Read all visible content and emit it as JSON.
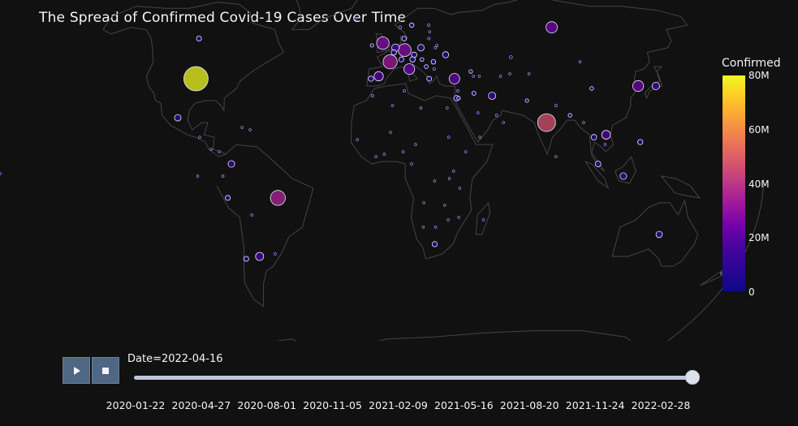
{
  "title": "The Spread of Confirmed Covid-19 Cases Over Time",
  "colorbar": {
    "title": "Confirmed",
    "ticks": [
      "80M",
      "60M",
      "40M",
      "20M",
      "0"
    ],
    "max": 80000000
  },
  "colors": {
    "background": "#111111",
    "land_outline": "#444444",
    "slider_rail": "#bec8d9",
    "button": "#506784"
  },
  "controls": {
    "play_icon": "play-icon",
    "stop_icon": "stop-icon"
  },
  "slider": {
    "current_prefix": "Date=",
    "current_value": "2022-04-16",
    "position_fraction": 1.0,
    "tick_labels": [
      "2020-01-22",
      "2020-04-27",
      "2020-08-01",
      "2020-11-05",
      "2021-02-09",
      "2021-05-16",
      "2021-08-20",
      "2021-11-24",
      "2022-02-28"
    ]
  },
  "chart_data": {
    "type": "scatter",
    "projection": "natural earth",
    "size_and_color_by": "Confirmed",
    "points": [
      {
        "lon": -98,
        "lat": 39,
        "value": 80000000
      },
      {
        "lon": 78,
        "lat": 21,
        "value": 43000000
      },
      {
        "lon": -52,
        "lat": -10,
        "value": 30000000
      },
      {
        "lon": 2,
        "lat": 46,
        "value": 27000000
      },
      {
        "lon": 10,
        "lat": 51,
        "value": 22000000
      },
      {
        "lon": -2,
        "lat": 54,
        "value": 21000000
      },
      {
        "lon": 97,
        "lat": 61,
        "value": 17500000
      },
      {
        "lon": 35,
        "lat": 39,
        "value": 15000000
      },
      {
        "lon": 12,
        "lat": 43,
        "value": 15500000
      },
      {
        "lon": 128,
        "lat": 36,
        "value": 16000000
      },
      {
        "lon": -4,
        "lat": 40,
        "value": 11600000
      },
      {
        "lon": 137,
        "lat": 36,
        "value": 7500000
      },
      {
        "lon": -64,
        "lat": -34,
        "value": 9000000
      },
      {
        "lon": 106,
        "lat": 16,
        "value": 10500000
      },
      {
        "lon": 19,
        "lat": 52,
        "value": 6000000
      },
      {
        "lon": 113,
        "lat": -1,
        "value": 6000000
      },
      {
        "lon": 32,
        "lat": 49,
        "value": 5000000
      },
      {
        "lon": 53,
        "lat": 32,
        "value": 7200000
      },
      {
        "lon": -74,
        "lat": 4,
        "value": 6100000
      },
      {
        "lon": 5,
        "lat": 52,
        "value": 8000000
      },
      {
        "lon": -102,
        "lat": 23,
        "value": 5700000
      },
      {
        "lon": 134,
        "lat": -25,
        "value": 5500000
      },
      {
        "lon": 24,
        "lat": -29,
        "value": 3700000
      },
      {
        "lon": 101,
        "lat": 4,
        "value": 4400000
      },
      {
        "lon": 122,
        "lat": 13,
        "value": 3700000
      },
      {
        "lon": -71,
        "lat": -35,
        "value": 3500000
      },
      {
        "lon": -76,
        "lat": -10,
        "value": 3500000
      },
      {
        "lon": 100,
        "lat": 15,
        "value": 4000000
      },
      {
        "lon": 15,
        "lat": 49,
        "value": 3900000
      },
      {
        "lon": -106,
        "lat": 56,
        "value": 3400000
      },
      {
        "lon": 4,
        "lat": 50,
        "value": 3900000
      },
      {
        "lon": 8,
        "lat": 47,
        "value": 3500000
      },
      {
        "lon": 14,
        "lat": 47,
        "value": 4000000
      },
      {
        "lon": -8,
        "lat": 39,
        "value": 3700000
      },
      {
        "lon": 22,
        "lat": 39,
        "value": 3200000
      },
      {
        "lon": 35,
        "lat": 31,
        "value": 4000000
      },
      {
        "lon": 104,
        "lat": 35,
        "value": 1800000
      },
      {
        "lon": 70,
        "lat": 30,
        "value": 1500000
      },
      {
        "lon": 90,
        "lat": 24,
        "value": 1900000
      },
      {
        "lon": 44,
        "lat": 33,
        "value": 2300000
      },
      {
        "lon": 25,
        "lat": 46,
        "value": 2800000
      },
      {
        "lon": 10,
        "lat": 56,
        "value": 3000000
      },
      {
        "lon": 25,
        "lat": 62,
        "value": 1000000
      },
      {
        "lon": 15,
        "lat": 62,
        "value": 2500000
      },
      {
        "lon": 8,
        "lat": 61,
        "value": 1400000
      },
      {
        "lon": 67,
        "lat": 48,
        "value": 1300000
      },
      {
        "lon": 45,
        "lat": 25,
        "value": 750000
      },
      {
        "lon": 54,
        "lat": 24,
        "value": 890000
      },
      {
        "lon": -78,
        "lat": -1,
        "value": 860000
      },
      {
        "lon": -65,
        "lat": -17,
        "value": 900000
      },
      {
        "lon": -56,
        "lat": -33,
        "value": 890000
      },
      {
        "lon": -66,
        "lat": 18,
        "value": 500000
      },
      {
        "lon": -84,
        "lat": 10,
        "value": 840000
      },
      {
        "lon": -80,
        "lat": 9,
        "value": 760000
      },
      {
        "lon": -70,
        "lat": 19,
        "value": 580000
      },
      {
        "lon": -90,
        "lat": 15,
        "value": 800000
      },
      {
        "lon": 174,
        "lat": -41,
        "value": 700000
      },
      {
        "lon": 3,
        "lat": 28,
        "value": 265000
      },
      {
        "lon": 30,
        "lat": 27,
        "value": 510000
      },
      {
        "lon": 9,
        "lat": 34,
        "value": 1000000
      },
      {
        "lon": -7,
        "lat": 32,
        "value": 1160000
      },
      {
        "lon": 38,
        "lat": 9,
        "value": 470000
      },
      {
        "lon": 38,
        "lat": 0,
        "value": 320000
      },
      {
        "lon": 8,
        "lat": 9,
        "value": 255000
      },
      {
        "lon": -1,
        "lat": 8,
        "value": 160000
      },
      {
        "lon": 28,
        "lat": -13,
        "value": 320000
      },
      {
        "lon": 30,
        "lat": -19,
        "value": 247000
      },
      {
        "lon": 18,
        "lat": -22,
        "value": 157000
      },
      {
        "lon": 24,
        "lat": -22,
        "value": 305000
      },
      {
        "lon": 35,
        "lat": -18,
        "value": 225000
      },
      {
        "lon": 47,
        "lat": -19,
        "value": 64000
      },
      {
        "lon": 30,
        "lat": 15,
        "value": 62000
      },
      {
        "lon": 12,
        "lat": 4,
        "value": 119000
      },
      {
        "lon": 18,
        "lat": -12,
        "value": 99000
      },
      {
        "lon": 23,
        "lat": -3,
        "value": 87000
      },
      {
        "lon": 35,
        "lat": -6,
        "value": 34000
      },
      {
        "lon": 32,
        "lat": 1,
        "value": 164000
      },
      {
        "lon": 30,
        "lat": -2,
        "value": 130000
      },
      {
        "lon": -14,
        "lat": 14,
        "value": 86000
      },
      {
        "lon": -5,
        "lat": 7,
        "value": 81000
      },
      {
        "lon": 2,
        "lat": 17,
        "value": 31000
      },
      {
        "lon": 17,
        "lat": 27,
        "value": 500000
      },
      {
        "lon": 45,
        "lat": 15,
        "value": 12000
      },
      {
        "lon": 57,
        "lat": 21,
        "value": 389000
      },
      {
        "lon": 84,
        "lat": 28,
        "value": 978000
      },
      {
        "lon": 81,
        "lat": 7,
        "value": 662000
      },
      {
        "lon": 96,
        "lat": 21,
        "value": 612000
      },
      {
        "lon": 105,
        "lat": 12,
        "value": 136000
      },
      {
        "lon": 103,
        "lat": 46,
        "value": 469000
      },
      {
        "lon": 74,
        "lat": 41,
        "value": 200000
      },
      {
        "lon": 59,
        "lat": 40,
        "value": 10000
      },
      {
        "lon": 64,
        "lat": 41,
        "value": 238000
      },
      {
        "lon": 44,
        "lat": 42,
        "value": 1650000
      },
      {
        "lon": 45,
        "lat": 40,
        "value": 423000
      },
      {
        "lon": 48,
        "lat": 40,
        "value": 792000
      },
      {
        "lon": 36,
        "lat": 34,
        "value": 1096000
      },
      {
        "lon": 36,
        "lat": 31,
        "value": 1690000
      },
      {
        "lon": 28,
        "lat": 53,
        "value": 960000
      },
      {
        "lon": 24,
        "lat": 56,
        "value": 1040000
      },
      {
        "lon": 25,
        "lat": 59,
        "value": 570000
      },
      {
        "lon": 21,
        "lat": 44,
        "value": 1990000
      },
      {
        "lon": 19,
        "lat": 47,
        "value": 1900000
      },
      {
        "lon": 25,
        "lat": 43,
        "value": 1150000
      },
      {
        "lon": -19,
        "lat": 65,
        "value": 184000
      },
      {
        "lon": -8,
        "lat": 53,
        "value": 1500000
      },
      {
        "lon": 14,
        "lat": 12,
        "value": 1800
      },
      {
        "lon": 27,
        "lat": 52,
        "value": 900000
      },
      {
        "lon": -90,
        "lat": -1,
        "value": 20000
      }
    ]
  }
}
